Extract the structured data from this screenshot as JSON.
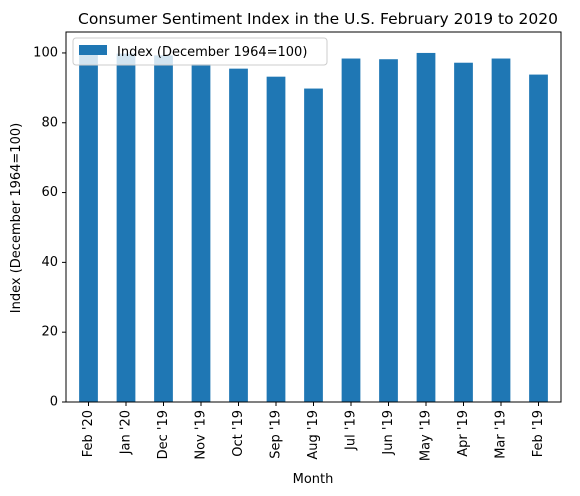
{
  "chart_data": {
    "type": "bar",
    "title": "Consumer Sentiment Index in the U.S. February 2019 to 2020",
    "xlabel": "Month",
    "ylabel": "Index (December 1964=100)",
    "categories": [
      "Feb '20",
      "Jan '20",
      "Dec '19",
      "Nov '19",
      "Oct '19",
      "Sep '19",
      "Aug '19",
      "Jul '19",
      "Jun '19",
      "May '19",
      "Apr '19",
      "Mar '19",
      "Feb '19"
    ],
    "series": [
      {
        "name": "Index (December 1964=100)",
        "color": "#1f77b4",
        "values": [
          101.0,
          99.8,
          99.3,
          96.8,
          95.5,
          93.2,
          89.8,
          98.4,
          98.2,
          100.0,
          97.2,
          98.4,
          93.8
        ]
      }
    ],
    "ylim": [
      0,
      106
    ],
    "yticks": [
      "0",
      "20",
      "40",
      "60",
      "80",
      "100"
    ],
    "grid": false,
    "legend_position": "upper-left"
  }
}
